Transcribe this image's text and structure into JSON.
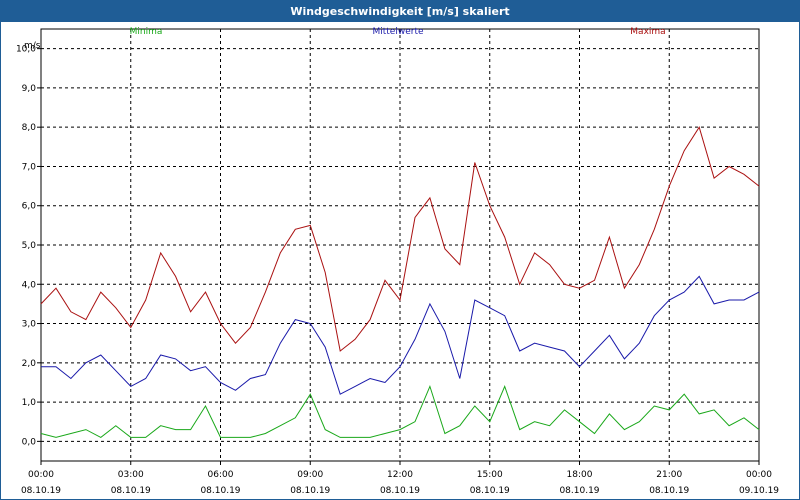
{
  "window": {
    "title": "Windgeschwindigkeit [m/s] skaliert"
  },
  "colors": {
    "minima": "#1aa81a",
    "mittelwerte": "#1a1aaa",
    "maxima": "#aa1111",
    "grid": "#000000",
    "titlebar": "#1f5d96"
  },
  "chart_data": {
    "type": "line",
    "title": "Windgeschwindigkeit [m/s] skaliert",
    "ylabel": "m/s",
    "xlabel": "",
    "ylim": [
      -0.5,
      10.5
    ],
    "y_ticks": [
      0.0,
      1.0,
      2.0,
      3.0,
      4.0,
      5.0,
      6.0,
      7.0,
      8.0,
      9.0,
      10.0
    ],
    "y_tick_labels": [
      "0,0",
      "1,0",
      "2,0",
      "3,0",
      "4,0",
      "5,0",
      "6,0",
      "7,0",
      "8,0",
      "9,0",
      "10,0"
    ],
    "xlim_hours": [
      0,
      24
    ],
    "x_ticks_hours": [
      0,
      3,
      6,
      9,
      12,
      15,
      18,
      21,
      24
    ],
    "x_tick_times": [
      "00:00",
      "03:00",
      "06:00",
      "09:00",
      "12:00",
      "15:00",
      "18:00",
      "21:00",
      "00:00"
    ],
    "x_tick_dates": [
      "08.10.19",
      "08.10.19",
      "08.10.19",
      "08.10.19",
      "08.10.19",
      "08.10.19",
      "08.10.19",
      "08.10.19",
      "09.10.19"
    ],
    "grid": true,
    "legend_placement": "top (as colored labels above plot)",
    "x": [
      0,
      0.5,
      1,
      1.5,
      2,
      2.5,
      3,
      3.5,
      4,
      4.5,
      5,
      5.5,
      6,
      6.5,
      7,
      7.5,
      8,
      8.5,
      9,
      9.5,
      10,
      10.5,
      11,
      11.5,
      12,
      12.5,
      13,
      13.5,
      14,
      14.5,
      15,
      15.5,
      16,
      16.5,
      17,
      17.5,
      18,
      18.5,
      19,
      19.5,
      20,
      20.5,
      21,
      21.5,
      22,
      22.5,
      23,
      23.5,
      24
    ],
    "series": [
      {
        "name": "Minima",
        "values": [
          0.2,
          0.1,
          0.2,
          0.3,
          0.1,
          0.4,
          0.1,
          0.1,
          0.4,
          0.3,
          0.3,
          0.9,
          0.1,
          0.1,
          0.1,
          0.2,
          0.4,
          0.6,
          1.2,
          0.3,
          0.1,
          0.1,
          0.1,
          0.2,
          0.3,
          0.5,
          1.4,
          0.2,
          0.4,
          0.9,
          0.5,
          1.4,
          0.3,
          0.5,
          0.4,
          0.8,
          0.5,
          0.2,
          0.7,
          0.3,
          0.5,
          0.9,
          0.8,
          1.2,
          0.7,
          0.8,
          0.4,
          0.6,
          0.3
        ]
      },
      {
        "name": "Mittelwerte",
        "values": [
          1.9,
          1.9,
          1.6,
          2.0,
          2.2,
          1.8,
          1.4,
          1.6,
          2.2,
          2.1,
          1.8,
          1.9,
          1.5,
          1.3,
          1.6,
          1.7,
          2.5,
          3.1,
          3.0,
          2.4,
          1.2,
          1.4,
          1.6,
          1.5,
          1.9,
          2.6,
          3.5,
          2.8,
          1.6,
          3.6,
          3.4,
          3.2,
          2.3,
          2.5,
          2.4,
          2.3,
          1.9,
          2.3,
          2.7,
          2.1,
          2.5,
          3.2,
          3.6,
          3.8,
          4.2,
          3.5,
          3.6,
          3.6,
          3.8
        ]
      },
      {
        "name": "Maxima",
        "values": [
          3.5,
          3.9,
          3.3,
          3.1,
          3.8,
          3.4,
          2.9,
          3.6,
          4.8,
          4.2,
          3.3,
          3.8,
          3.0,
          2.5,
          2.9,
          3.8,
          4.8,
          5.4,
          5.5,
          4.3,
          2.3,
          2.6,
          3.1,
          4.1,
          3.6,
          5.7,
          6.2,
          4.9,
          4.5,
          7.1,
          6.0,
          5.2,
          4.0,
          4.8,
          4.5,
          4.0,
          3.9,
          4.1,
          5.2,
          3.9,
          4.5,
          5.4,
          6.5,
          7.4,
          8.0,
          6.7,
          7.0,
          6.8,
          6.5
        ]
      }
    ]
  }
}
